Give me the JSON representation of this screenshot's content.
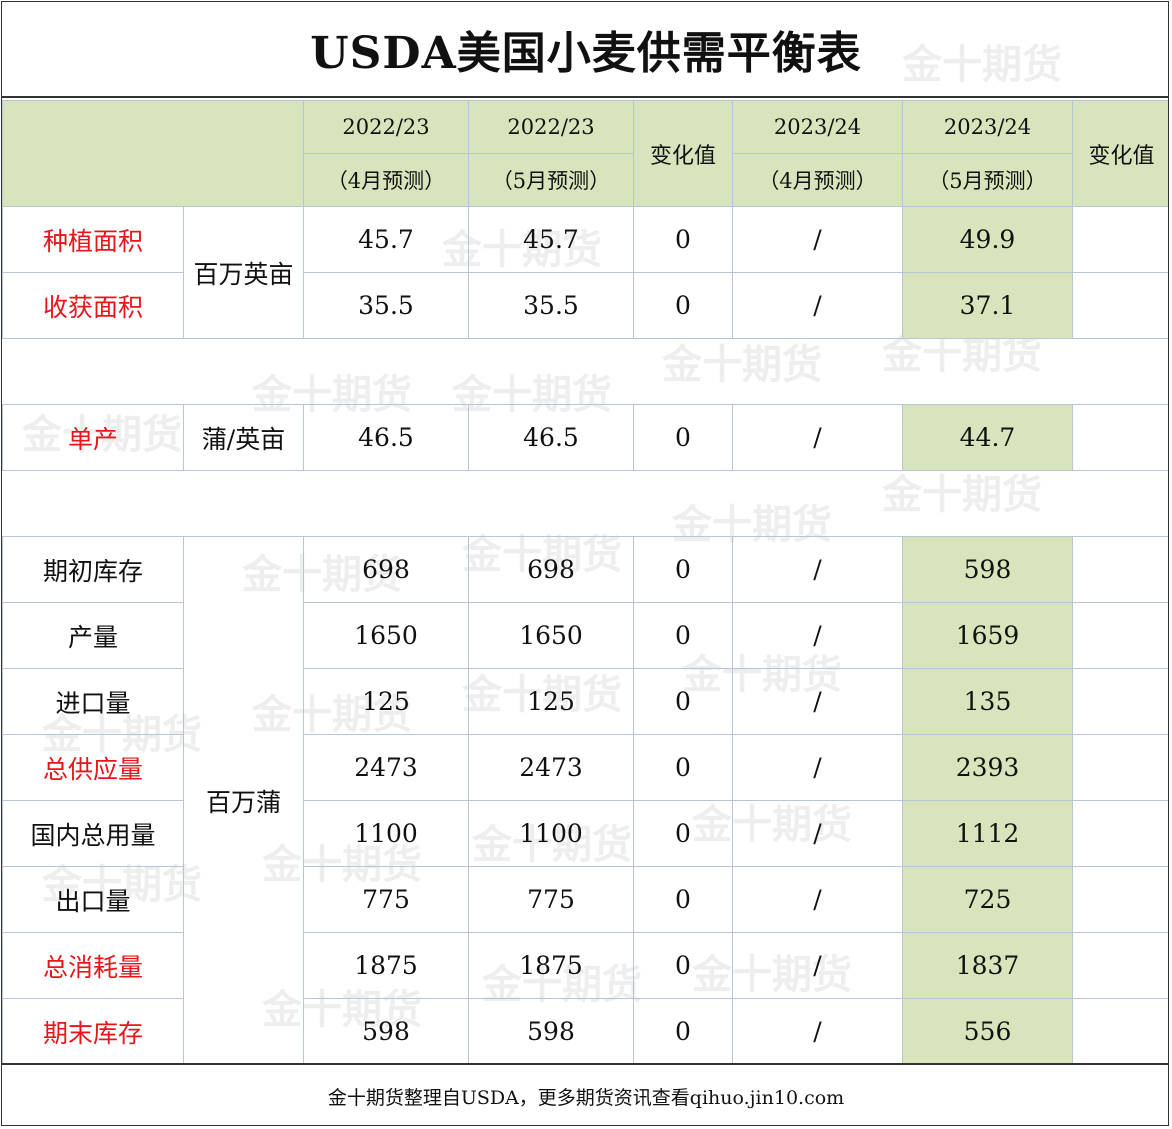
{
  "title": "USDA美国小麦供需平衡表",
  "header": {
    "col1_year": "2022/23",
    "col1_sub": "（4月预测）",
    "col2_year": "2022/23",
    "col2_sub": "（5月预测）",
    "change1": "变化值",
    "col3_year": "2023/24",
    "col3_sub": "（4月预测）",
    "col4_year": "2023/24",
    "col4_sub": "（5月预测）",
    "change2": "变化值"
  },
  "units": {
    "area": "百万英亩",
    "yield": "蒲/英亩",
    "volume": "百万蒲"
  },
  "rows": [
    {
      "label": "种植面积",
      "v1": "45.7",
      "v2": "45.7",
      "c1": "0",
      "v3": "/",
      "v4": "49.9"
    },
    {
      "label": "收获面积",
      "v1": "35.5",
      "v2": "35.5",
      "c1": "0",
      "v3": "/",
      "v4": "37.1"
    },
    {
      "label": "单产",
      "v1": "46.5",
      "v2": "46.5",
      "c1": "0",
      "v3": "/",
      "v4": "44.7"
    },
    {
      "label": "期初库存",
      "v1": "698",
      "v2": "698",
      "c1": "0",
      "v3": "/",
      "v4": "598"
    },
    {
      "label": "产量",
      "v1": "1650",
      "v2": "1650",
      "c1": "0",
      "v3": "/",
      "v4": "1659"
    },
    {
      "label": "进口量",
      "v1": "125",
      "v2": "125",
      "c1": "0",
      "v3": "/",
      "v4": "135"
    },
    {
      "label": "总供应量",
      "v1": "2473",
      "v2": "2473",
      "c1": "0",
      "v3": "/",
      "v4": "2393"
    },
    {
      "label": "国内总用量",
      "v1": "1100",
      "v2": "1100",
      "c1": "0",
      "v3": "/",
      "v4": "1112"
    },
    {
      "label": "出口量",
      "v1": "775",
      "v2": "775",
      "c1": "0",
      "v3": "/",
      "v4": "725"
    },
    {
      "label": "总消耗量",
      "v1": "1875",
      "v2": "1875",
      "c1": "0",
      "v3": "/",
      "v4": "1837"
    },
    {
      "label": "期末库存",
      "v1": "598",
      "v2": "598",
      "c1": "0",
      "v3": "/",
      "v4": "556"
    }
  ],
  "watermark": "金十期货",
  "footer": "金十期货整理自USDA，更多期货资讯查看qihuo.jin10.com",
  "colors": {
    "header_bg": "#d8e4bc",
    "label_red": "#e8151a",
    "grid_line": "#b9c4d6"
  }
}
